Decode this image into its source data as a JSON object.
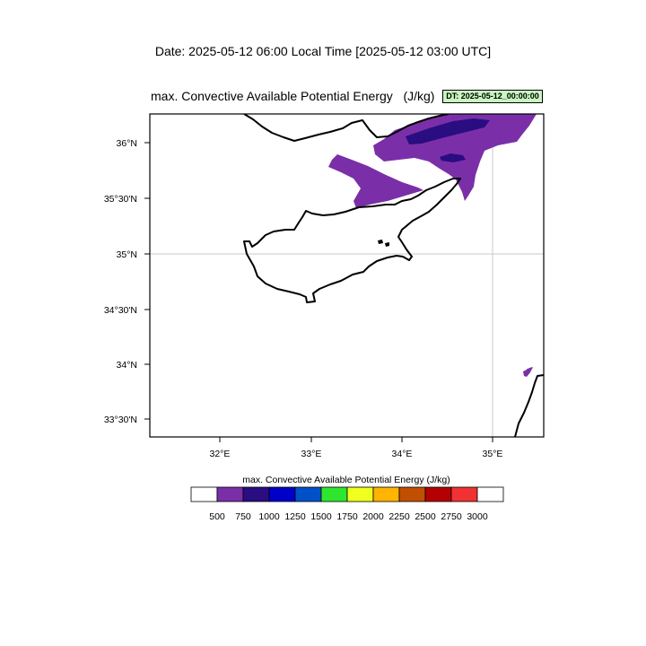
{
  "header": {
    "date_line": "Date: 2025-05-12  06:00 Local Time [2025-05-12  03:00 UTC]"
  },
  "map": {
    "title": "max. Convective Available Potential Energy   (J/kg)",
    "dt_badge": "DT: 2025-05-12_00:00:00",
    "lat_labels": [
      "36°N",
      "35°30'N",
      "35°N",
      "34°30'N",
      "34°N",
      "33°30'N"
    ],
    "lon_labels": [
      "32°E",
      "33°E",
      "34°E",
      "35°E"
    ],
    "region": "Cyprus",
    "colors": {
      "frame": "#000000",
      "gridline": "#c8c8c8",
      "cape_750": "#7a2fa8",
      "cape_1000": "#2a0d80"
    }
  },
  "legend": {
    "title": "max. Convective Available Potential Energy  (J/kg)",
    "labels": [
      "500",
      "750",
      "1000",
      "1250",
      "1500",
      "1750",
      "2000",
      "2250",
      "2500",
      "2750",
      "3000"
    ],
    "colors": [
      "#ffffff",
      "#7a2fa8",
      "#2a0d80",
      "#0000c8",
      "#0050c8",
      "#2ee62e",
      "#f0ff1e",
      "#ffb400",
      "#c05000",
      "#b40000",
      "#f03232",
      "#ffffff"
    ]
  }
}
